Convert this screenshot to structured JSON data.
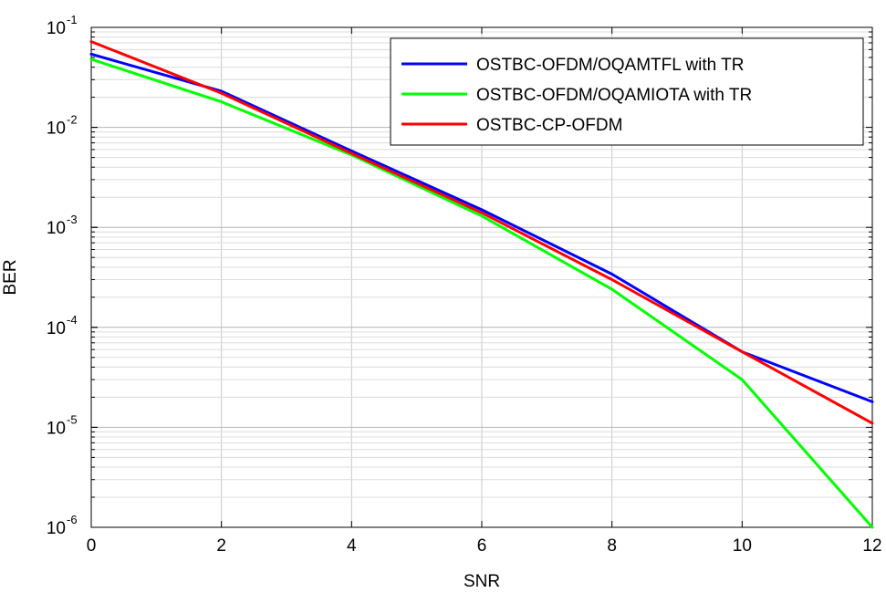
{
  "chart_data": {
    "type": "line",
    "xlabel": "SNR",
    "ylabel": "BER",
    "xlim": [
      0,
      12
    ],
    "ylim": [
      1e-06,
      0.1
    ],
    "yscale": "log",
    "grid": true,
    "legend_position": "top-right",
    "x_ticks": [
      "0",
      "2",
      "4",
      "6",
      "8",
      "10",
      "12"
    ],
    "y_ticks": [
      {
        "value": 1e-06,
        "base": "10",
        "exp": "-6"
      },
      {
        "value": 1e-05,
        "base": "10",
        "exp": "-5"
      },
      {
        "value": 0.0001,
        "base": "10",
        "exp": "-4"
      },
      {
        "value": 0.001,
        "base": "10",
        "exp": "-3"
      },
      {
        "value": 0.01,
        "base": "10",
        "exp": "-2"
      },
      {
        "value": 0.1,
        "base": "10",
        "exp": "-1"
      }
    ],
    "series": [
      {
        "name": "OSTBC-OFDM/OQAMTFL with TR",
        "color": "#0000ff",
        "x": [
          0,
          2,
          4,
          6,
          8,
          10,
          12
        ],
        "y": [
          0.054,
          0.023,
          0.0058,
          0.0015,
          0.00034,
          5.7e-05,
          1.8e-05
        ]
      },
      {
        "name": "OSTBC-OFDM/OQAMIOTA with TR",
        "color": "#00ff00",
        "x": [
          0,
          2,
          4,
          6,
          8,
          10,
          12
        ],
        "y": [
          0.048,
          0.018,
          0.0053,
          0.0013,
          0.00024,
          3e-05,
          1e-06
        ]
      },
      {
        "name": "OSTBC-CP-OFDM",
        "color": "#ff0000",
        "x": [
          0,
          2,
          4,
          6,
          8,
          10,
          12
        ],
        "y": [
          0.072,
          0.022,
          0.0055,
          0.0014,
          0.0003,
          5.7e-05,
          1.1e-05
        ]
      }
    ]
  }
}
